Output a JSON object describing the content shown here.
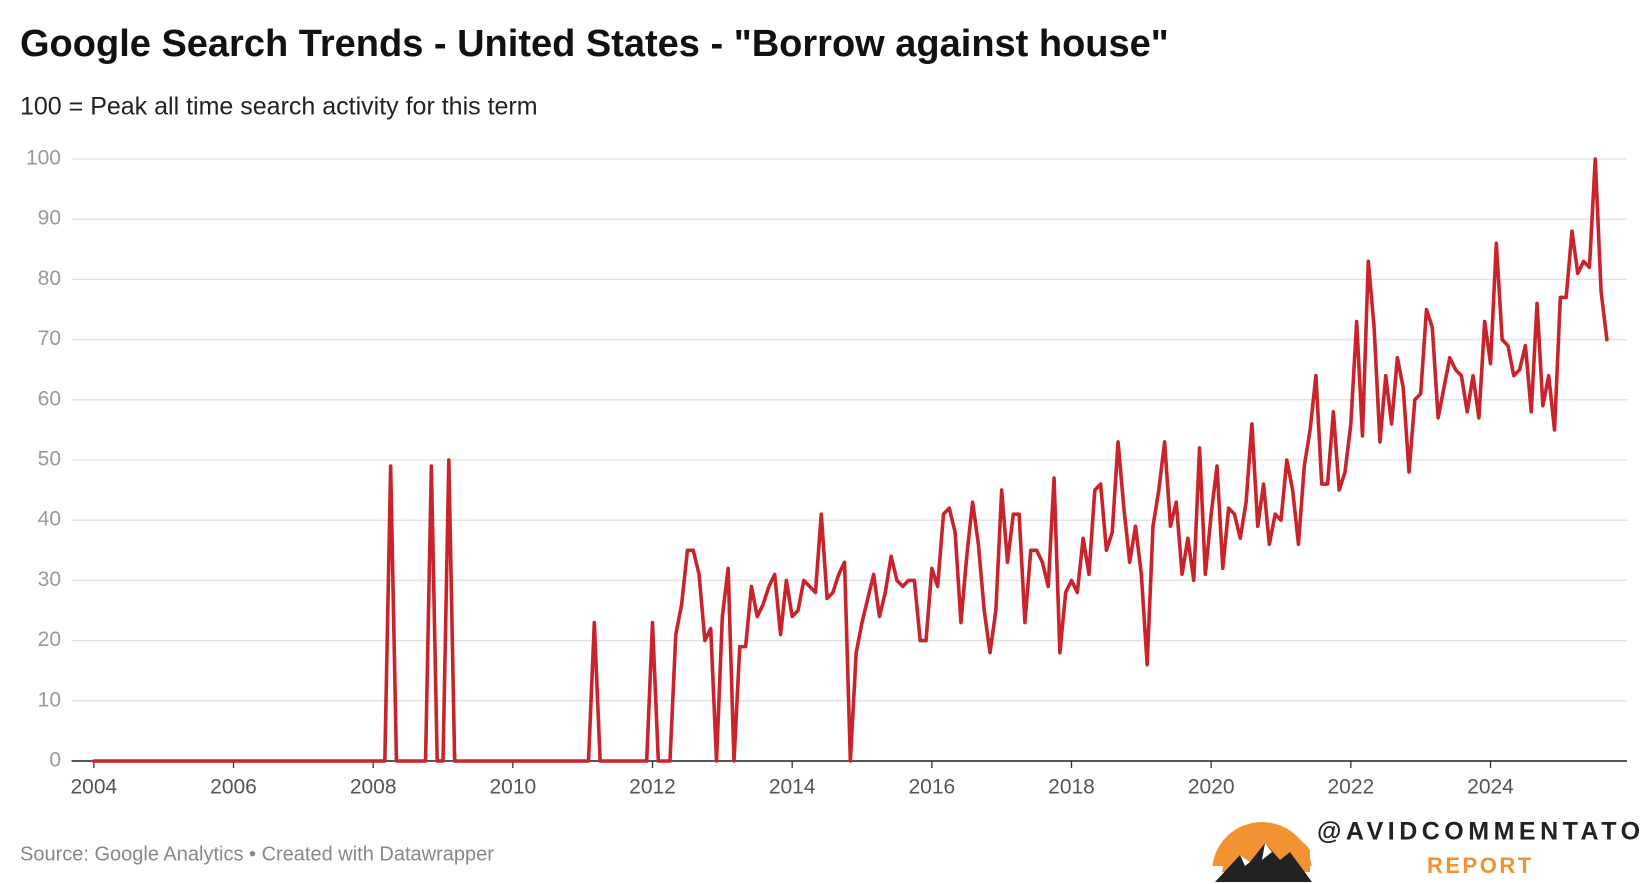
{
  "chart_data": {
    "type": "line",
    "title": "Google Search Trends - United States - \"Borrow against house\"",
    "subtitle": "100 = Peak all time search activity for this term",
    "source": "Source: Google Analytics • Created with Datawrapper",
    "brand": {
      "handle": "@AVIDCOMMENTATOR",
      "name": "REPORT"
    },
    "x": [
      "2004-01",
      "2004-02",
      "2004-03",
      "2004-04",
      "2004-05",
      "2004-06",
      "2004-07",
      "2004-08",
      "2004-09",
      "2004-10",
      "2004-11",
      "2004-12",
      "2005-01",
      "2005-02",
      "2005-03",
      "2005-04",
      "2005-05",
      "2005-06",
      "2005-07",
      "2005-08",
      "2005-09",
      "2005-10",
      "2005-11",
      "2005-12",
      "2006-01",
      "2006-02",
      "2006-03",
      "2006-04",
      "2006-05",
      "2006-06",
      "2006-07",
      "2006-08",
      "2006-09",
      "2006-10",
      "2006-11",
      "2006-12",
      "2007-01",
      "2007-02",
      "2007-03",
      "2007-04",
      "2007-05",
      "2007-06",
      "2007-07",
      "2007-08",
      "2007-09",
      "2007-10",
      "2007-11",
      "2007-12",
      "2008-01",
      "2008-02",
      "2008-03",
      "2008-04",
      "2008-05",
      "2008-06",
      "2008-07",
      "2008-08",
      "2008-09",
      "2008-10",
      "2008-11",
      "2008-12",
      "2009-01",
      "2009-02",
      "2009-03",
      "2009-04",
      "2009-05",
      "2009-06",
      "2009-07",
      "2009-08",
      "2009-09",
      "2009-10",
      "2009-11",
      "2009-12",
      "2010-01",
      "2010-02",
      "2010-03",
      "2010-04",
      "2010-05",
      "2010-06",
      "2010-07",
      "2010-08",
      "2010-09",
      "2010-10",
      "2010-11",
      "2010-12",
      "2011-01",
      "2011-02",
      "2011-03",
      "2011-04",
      "2011-05",
      "2011-06",
      "2011-07",
      "2011-08",
      "2011-09",
      "2011-10",
      "2011-11",
      "2011-12",
      "2012-01",
      "2012-02",
      "2012-03",
      "2012-04",
      "2012-05",
      "2012-06",
      "2012-07",
      "2012-08",
      "2012-09",
      "2012-10",
      "2012-11",
      "2012-12",
      "2013-01",
      "2013-02",
      "2013-03",
      "2013-04",
      "2013-05",
      "2013-06",
      "2013-07",
      "2013-08",
      "2013-09",
      "2013-10",
      "2013-11",
      "2013-12",
      "2014-01",
      "2014-02",
      "2014-03",
      "2014-04",
      "2014-05",
      "2014-06",
      "2014-07",
      "2014-08",
      "2014-09",
      "2014-10",
      "2014-11",
      "2014-12",
      "2015-01",
      "2015-02",
      "2015-03",
      "2015-04",
      "2015-05",
      "2015-06",
      "2015-07",
      "2015-08",
      "2015-09",
      "2015-10",
      "2015-11",
      "2015-12",
      "2016-01",
      "2016-02",
      "2016-03",
      "2016-04",
      "2016-05",
      "2016-06",
      "2016-07",
      "2016-08",
      "2016-09",
      "2016-10",
      "2016-11",
      "2016-12",
      "2017-01",
      "2017-02",
      "2017-03",
      "2017-04",
      "2017-05",
      "2017-06",
      "2017-07",
      "2017-08",
      "2017-09",
      "2017-10",
      "2017-11",
      "2017-12",
      "2018-01",
      "2018-02",
      "2018-03",
      "2018-04",
      "2018-05",
      "2018-06",
      "2018-07",
      "2018-08",
      "2018-09",
      "2018-10",
      "2018-11",
      "2018-12",
      "2019-01",
      "2019-02",
      "2019-03",
      "2019-04",
      "2019-05",
      "2019-06",
      "2019-07",
      "2019-08",
      "2019-09",
      "2019-10",
      "2019-11",
      "2019-12",
      "2020-01",
      "2020-02",
      "2020-03",
      "2020-04",
      "2020-05",
      "2020-06",
      "2020-07",
      "2020-08",
      "2020-09",
      "2020-10",
      "2020-11",
      "2020-12",
      "2021-01",
      "2021-02",
      "2021-03",
      "2021-04",
      "2021-05",
      "2021-06",
      "2021-07",
      "2021-08",
      "2021-09",
      "2021-10",
      "2021-11",
      "2021-12",
      "2022-01",
      "2022-02",
      "2022-03",
      "2022-04",
      "2022-05",
      "2022-06",
      "2022-07",
      "2022-08",
      "2022-09",
      "2022-10",
      "2022-11",
      "2022-12",
      "2023-01",
      "2023-02",
      "2023-03",
      "2023-04",
      "2023-05",
      "2023-06",
      "2023-07",
      "2023-08",
      "2023-09",
      "2023-10",
      "2023-11",
      "2023-12",
      "2024-01",
      "2024-02",
      "2024-03",
      "2024-04",
      "2024-05",
      "2024-06",
      "2024-07",
      "2024-08",
      "2024-09",
      "2024-10",
      "2024-11",
      "2024-12",
      "2025-01",
      "2025-02",
      "2025-03",
      "2025-04",
      "2025-05",
      "2025-06",
      "2025-07",
      "2025-08",
      "2025-09"
    ],
    "series": [
      {
        "name": "Borrow against house",
        "color": "#c9242b",
        "values": [
          0,
          0,
          0,
          0,
          0,
          0,
          0,
          0,
          0,
          0,
          0,
          0,
          0,
          0,
          0,
          0,
          0,
          0,
          0,
          0,
          0,
          0,
          0,
          0,
          0,
          0,
          0,
          0,
          0,
          0,
          0,
          0,
          0,
          0,
          0,
          0,
          0,
          0,
          0,
          0,
          0,
          0,
          0,
          0,
          0,
          0,
          0,
          0,
          0,
          0,
          0,
          49,
          0,
          0,
          0,
          0,
          0,
          0,
          49,
          0,
          0,
          50,
          0,
          0,
          0,
          0,
          0,
          0,
          0,
          0,
          0,
          0,
          0,
          0,
          0,
          0,
          0,
          0,
          0,
          0,
          0,
          0,
          0,
          0,
          0,
          0,
          23,
          0,
          0,
          0,
          0,
          0,
          0,
          0,
          0,
          0,
          23,
          0,
          0,
          0,
          21,
          26,
          35,
          35,
          31,
          20,
          22,
          0,
          24,
          32,
          0,
          19,
          19,
          29,
          24,
          26,
          29,
          31,
          21,
          30,
          24,
          25,
          30,
          29,
          28,
          41,
          27,
          28,
          31,
          33,
          0,
          18,
          23,
          27,
          31,
          24,
          28,
          34,
          30,
          29,
          30,
          30,
          20,
          20,
          32,
          29,
          41,
          42,
          38,
          23,
          34,
          43,
          36,
          25,
          18,
          25,
          45,
          33,
          41,
          41,
          23,
          35,
          35,
          33,
          29,
          47,
          18,
          28,
          30,
          28,
          37,
          31,
          45,
          46,
          35,
          38,
          53,
          42,
          33,
          39,
          31,
          16,
          39,
          45,
          53,
          39,
          43,
          31,
          37,
          30,
          52,
          31,
          41,
          49,
          32,
          42,
          41,
          37,
          43,
          56,
          39,
          46,
          36,
          41,
          40,
          50,
          45,
          36,
          49,
          55,
          64,
          46,
          46,
          58,
          45,
          48,
          56,
          73,
          54,
          83,
          72,
          53,
          64,
          56,
          67,
          62,
          48,
          60,
          61,
          75,
          72,
          57,
          62,
          67,
          65,
          64,
          58,
          64,
          57,
          73,
          66,
          86,
          70,
          69,
          64,
          65,
          69,
          58,
          76,
          59,
          64,
          55,
          77,
          77,
          88,
          81,
          83,
          82,
          100,
          78,
          70
        ]
      }
    ],
    "xlim": [
      2003.68,
      2025.84
    ],
    "xticks": [
      2004,
      2006,
      2008,
      2010,
      2012,
      2014,
      2016,
      2018,
      2020,
      2022,
      2024
    ],
    "ylim": [
      0,
      100
    ],
    "yticks": [
      0,
      10,
      20,
      30,
      40,
      50,
      60,
      70,
      80,
      90,
      100
    ],
    "grid": true
  }
}
